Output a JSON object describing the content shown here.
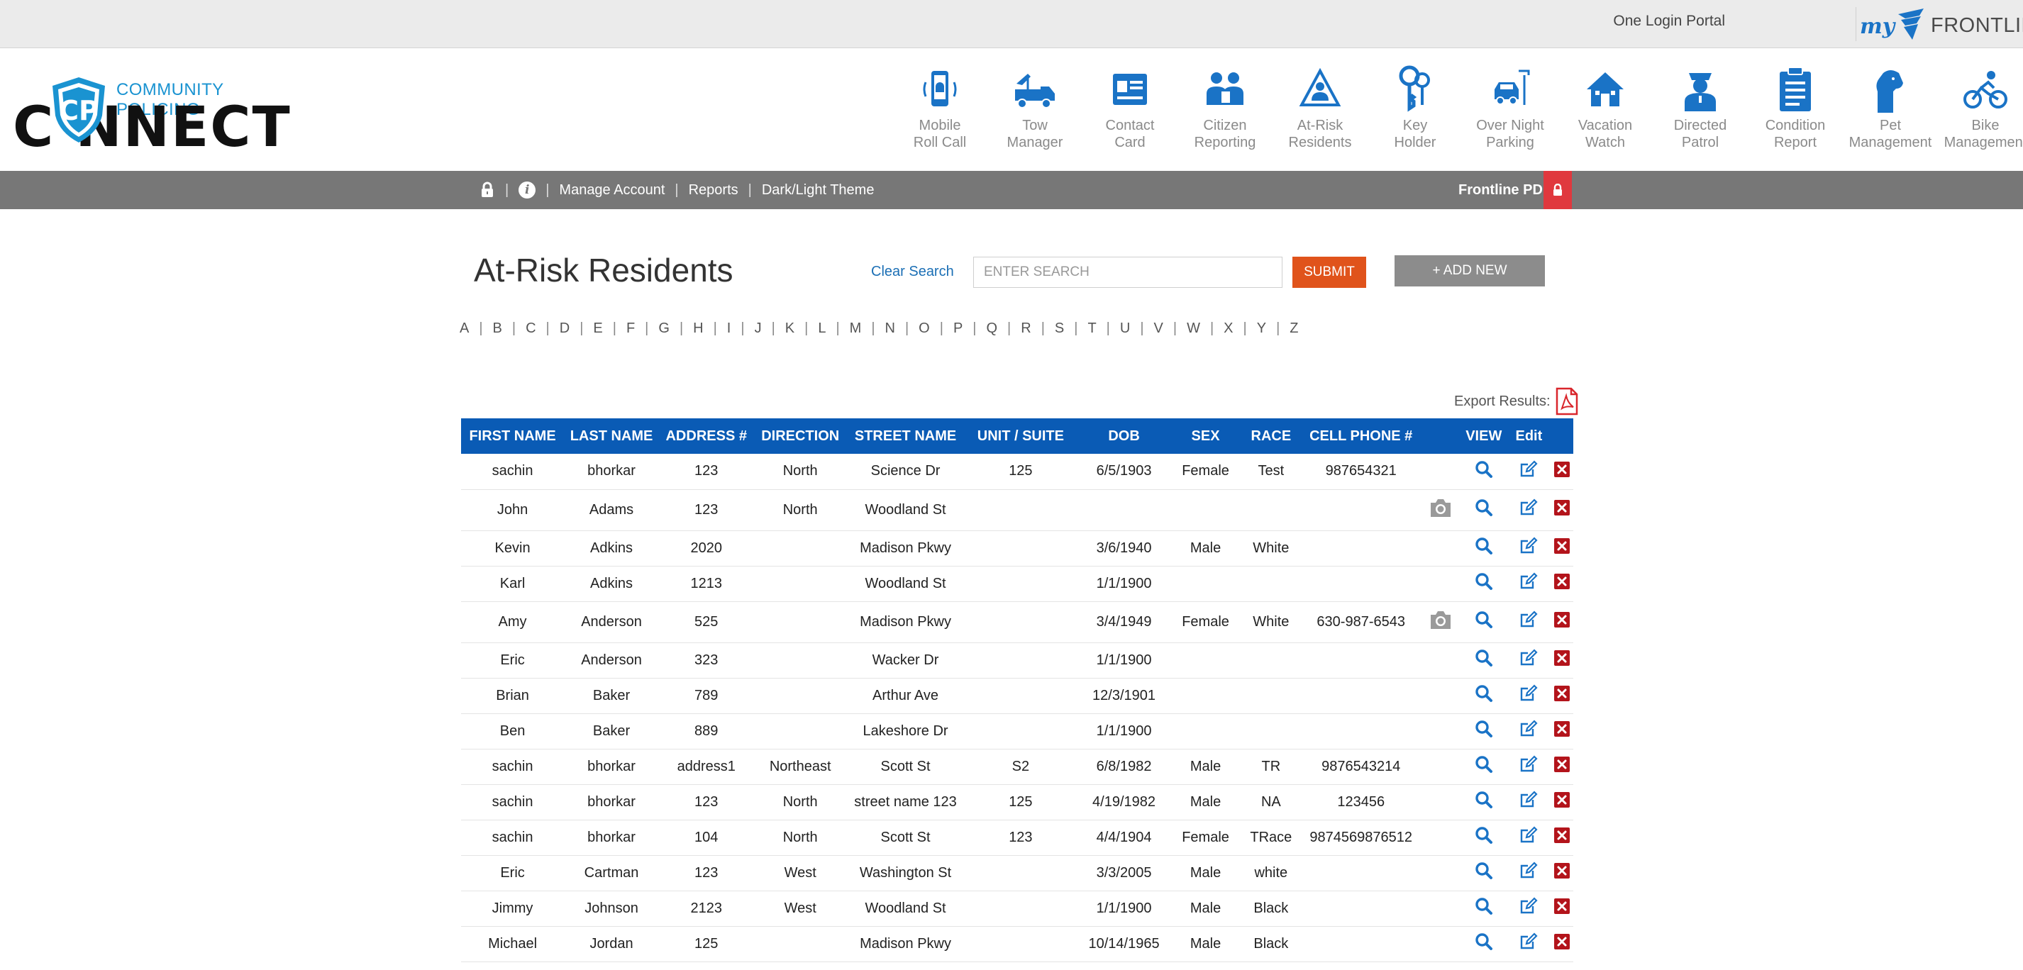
{
  "portal": {
    "one_login": "One Login Portal",
    "brand_my": "my",
    "brand_name": "FRONTLINE"
  },
  "logo": {
    "subtitle": "COMMUNITY POLICING",
    "wordmark": "C  NNECT"
  },
  "modules": [
    {
      "label": "Mobile\nRoll Call",
      "icon": "mobile-roll-call-icon"
    },
    {
      "label": "Tow\nManager",
      "icon": "tow-truck-icon"
    },
    {
      "label": "Contact\nCard",
      "icon": "contact-card-icon"
    },
    {
      "label": "Citizen\nReporting",
      "icon": "citizen-reporting-icon"
    },
    {
      "label": "At-Risk\nResidents",
      "icon": "at-risk-icon"
    },
    {
      "label": "Key\nHolder",
      "icon": "key-icon"
    },
    {
      "label": "Over Night\nParking",
      "icon": "parking-icon"
    },
    {
      "label": "Vacation\nWatch",
      "icon": "house-icon"
    },
    {
      "label": "Directed\nPatrol",
      "icon": "officer-icon"
    },
    {
      "label": "Condition\nReport",
      "icon": "clipboard-icon"
    },
    {
      "label": "Pet\nManagement",
      "icon": "pet-icon"
    },
    {
      "label": "Bike\nManagement",
      "icon": "bike-icon"
    }
  ],
  "nav": {
    "manage_account": "Manage Account",
    "reports": "Reports",
    "theme": "Dark/Light Theme",
    "department": "Frontline PD",
    "separator": "|",
    "info": "i"
  },
  "page": {
    "title": "At-Risk Residents",
    "clear_search": "Clear Search",
    "search_placeholder": "ENTER SEARCH",
    "submit": "SUBMIT",
    "add_new": "+ ADD NEW",
    "export_label": "Export Results:"
  },
  "alphabet": [
    "A",
    "B",
    "C",
    "D",
    "E",
    "F",
    "G",
    "H",
    "I",
    "J",
    "K",
    "L",
    "M",
    "N",
    "O",
    "P",
    "Q",
    "R",
    "S",
    "T",
    "U",
    "V",
    "W",
    "X",
    "Y",
    "Z"
  ],
  "table": {
    "headers": [
      "FIRST NAME",
      "LAST NAME",
      "ADDRESS #",
      "DIRECTION",
      "STREET NAME",
      "UNIT / SUITE",
      "DOB",
      "SEX",
      "RACE",
      "CELL PHONE #",
      "",
      "VIEW",
      "Edit",
      ""
    ],
    "rows": [
      {
        "cells": [
          "sachin",
          "bhorkar",
          "123",
          "North",
          "Science Dr",
          "125",
          "6/5/1903",
          "Female",
          "Test",
          "987654321"
        ],
        "photo": false
      },
      {
        "cells": [
          "John",
          "Adams",
          "123",
          "North",
          "Woodland St",
          "",
          "",
          "",
          "",
          ""
        ],
        "photo": true
      },
      {
        "cells": [
          "Kevin",
          "Adkins",
          "2020",
          "",
          "Madison Pkwy",
          "",
          "3/6/1940",
          "Male",
          "White",
          ""
        ],
        "photo": false
      },
      {
        "cells": [
          "Karl",
          "Adkins",
          "1213",
          "",
          "Woodland St",
          "",
          "1/1/1900",
          "",
          "",
          ""
        ],
        "photo": false
      },
      {
        "cells": [
          "Amy",
          "Anderson",
          "525",
          "",
          "Madison Pkwy",
          "",
          "3/4/1949",
          "Female",
          "White",
          "630-987-6543"
        ],
        "photo": true
      },
      {
        "cells": [
          "Eric",
          "Anderson",
          "323",
          "",
          "Wacker Dr",
          "",
          "1/1/1900",
          "",
          "",
          ""
        ],
        "photo": false
      },
      {
        "cells": [
          "Brian",
          "Baker",
          "789",
          "",
          "Arthur Ave",
          "",
          "12/3/1901",
          "",
          "",
          ""
        ],
        "photo": false
      },
      {
        "cells": [
          "Ben",
          "Baker",
          "889",
          "",
          "Lakeshore Dr",
          "",
          "1/1/1900",
          "",
          "",
          ""
        ],
        "photo": false
      },
      {
        "cells": [
          "sachin",
          "bhorkar",
          "address1",
          "Northeast",
          "Scott St",
          "S2",
          "6/8/1982",
          "Male",
          "TR",
          "9876543214"
        ],
        "photo": false
      },
      {
        "cells": [
          "sachin",
          "bhorkar",
          "123",
          "North",
          "street name 123",
          "125",
          "4/19/1982",
          "Male",
          "NA",
          "123456"
        ],
        "photo": false
      },
      {
        "cells": [
          "sachin",
          "bhorkar",
          "104",
          "North",
          "Scott St",
          "123",
          "4/4/1904",
          "Female",
          "TRace",
          "9874569876512"
        ],
        "photo": false
      },
      {
        "cells": [
          "Eric",
          "Cartman",
          "123",
          "West",
          "Washington St",
          "",
          "3/3/2005",
          "Male",
          "white",
          ""
        ],
        "photo": false
      },
      {
        "cells": [
          "Jimmy",
          "Johnson",
          "2123",
          "West",
          "Woodland St",
          "",
          "1/1/1900",
          "Male",
          "Black",
          ""
        ],
        "photo": false
      },
      {
        "cells": [
          "Michael",
          "Jordan",
          "125",
          "",
          "Madison Pkwy",
          "",
          "10/14/1965",
          "Male",
          "Black",
          ""
        ],
        "photo": false
      }
    ]
  },
  "colors": {
    "primary": "#0a5bb5",
    "icon_blue": "#1a73c6",
    "submit": "#e0531b",
    "delete": "#b3141b",
    "navbar": "#777777"
  }
}
